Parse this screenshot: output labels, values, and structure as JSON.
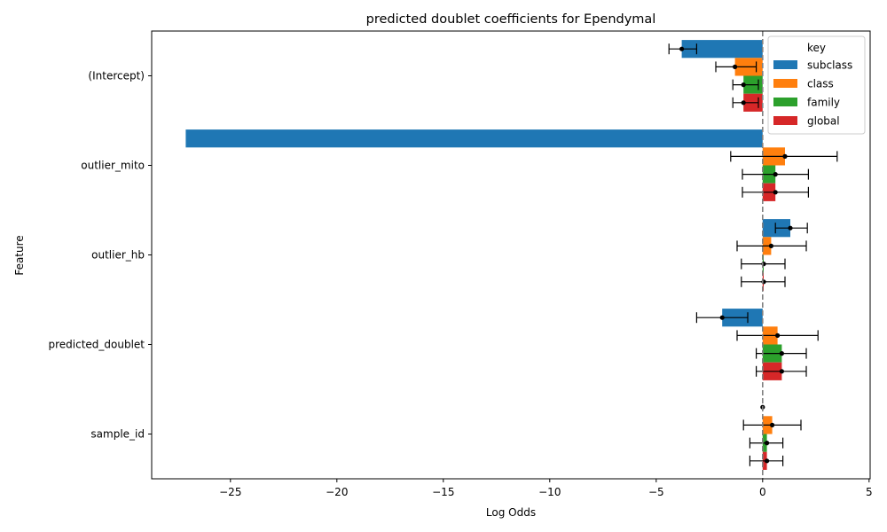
{
  "chart_data": {
    "type": "bar",
    "orientation": "horizontal",
    "title": "predicted doublet coefficients for Ependymal",
    "xlabel": "Log Odds",
    "ylabel": "Feature",
    "xlim": [
      -28.7,
      5.05
    ],
    "xticks": [
      -25,
      -20,
      -15,
      -10,
      -5,
      0,
      5
    ],
    "xtick_labels": [
      "−25",
      "−20",
      "−15",
      "−10",
      "−5",
      "0",
      "5"
    ],
    "reference_line": 0,
    "categories": [
      "(Intercept)",
      "outlier_mito",
      "outlier_hb",
      "predicted_doublet",
      "sample_id"
    ],
    "legend_title": "key",
    "legend_position": "top-right",
    "series": [
      {
        "name": "subclass",
        "color": "#1f77b4",
        "values": [
          -3.8,
          -27.1,
          1.3,
          -1.9,
          0.0
        ],
        "ci_low": [
          -4.4,
          null,
          0.6,
          -3.1,
          null
        ],
        "ci_high": [
          -3.1,
          null,
          2.1,
          -0.7,
          null
        ]
      },
      {
        "name": "class",
        "color": "#ff7f0e",
        "values": [
          -1.3,
          1.05,
          0.4,
          0.7,
          0.45
        ],
        "ci_low": [
          -2.2,
          -1.5,
          -1.2,
          -1.2,
          -0.9
        ],
        "ci_high": [
          -0.3,
          3.5,
          2.05,
          2.6,
          1.8
        ]
      },
      {
        "name": "family",
        "color": "#2ca02c",
        "values": [
          -0.9,
          0.6,
          0.05,
          0.9,
          0.2
        ],
        "ci_low": [
          -1.4,
          -0.95,
          -1.0,
          -0.3,
          -0.6
        ],
        "ci_high": [
          -0.2,
          2.15,
          1.05,
          2.05,
          0.95
        ]
      },
      {
        "name": "global",
        "color": "#d62728",
        "values": [
          -0.9,
          0.6,
          0.05,
          0.9,
          0.2
        ],
        "ci_low": [
          -1.4,
          -0.95,
          -1.0,
          -0.3,
          -0.6
        ],
        "ci_high": [
          -0.2,
          2.15,
          1.05,
          2.05,
          0.95
        ]
      }
    ]
  }
}
